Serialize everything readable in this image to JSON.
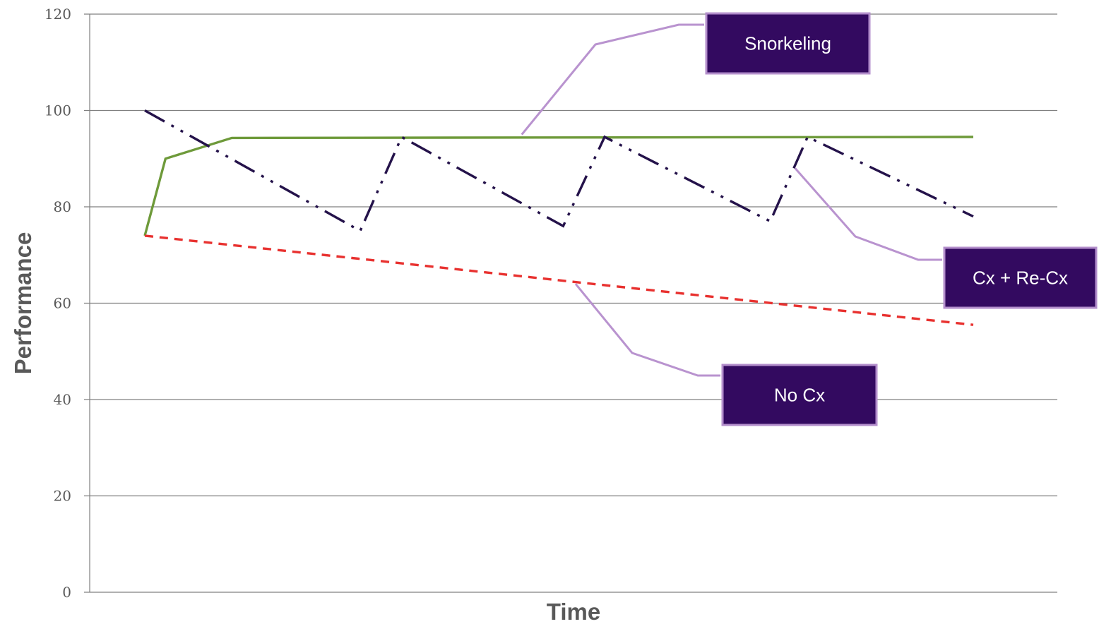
{
  "chart_data": {
    "type": "line",
    "xlabel": "Time",
    "ylabel": "Performance",
    "ylim": [
      0,
      120
    ],
    "yticks": [
      0,
      20,
      40,
      60,
      80,
      100,
      120
    ],
    "grid": true,
    "series": [
      {
        "key": "snorkeling",
        "color": "#6e9a3a",
        "style": "solid",
        "points": [
          [
            0,
            74
          ],
          [
            0.025,
            90
          ],
          [
            0.105,
            94.3
          ],
          [
            1,
            94.5
          ]
        ]
      },
      {
        "key": "cx-recx",
        "color": "#24124a",
        "style": "dash-dot-dot",
        "points": [
          [
            0,
            100
          ],
          [
            0.26,
            75
          ],
          [
            0.31,
            94.5
          ],
          [
            0.505,
            76
          ],
          [
            0.555,
            94.5
          ],
          [
            0.755,
            77
          ],
          [
            0.8,
            94.5
          ],
          [
            1,
            78
          ]
        ]
      },
      {
        "key": "no-cx",
        "color": "#e8312f",
        "style": "dashed",
        "points": [
          [
            0,
            74
          ],
          [
            1,
            55.5
          ]
        ]
      }
    ],
    "callouts": [
      {
        "label": "Snorkeling",
        "target": [
          0.455,
          95
        ]
      },
      {
        "label": "Cx + Re-Cx",
        "target": [
          0.785,
          88
        ]
      },
      {
        "label": "No Cx",
        "target": [
          0.52,
          64
        ]
      }
    ],
    "colors": {
      "callout_fill": "#330a60",
      "callout_border": "#b38ecb",
      "leader_line": "#b993cf",
      "gridline": "#808080",
      "text": "#595959"
    }
  }
}
